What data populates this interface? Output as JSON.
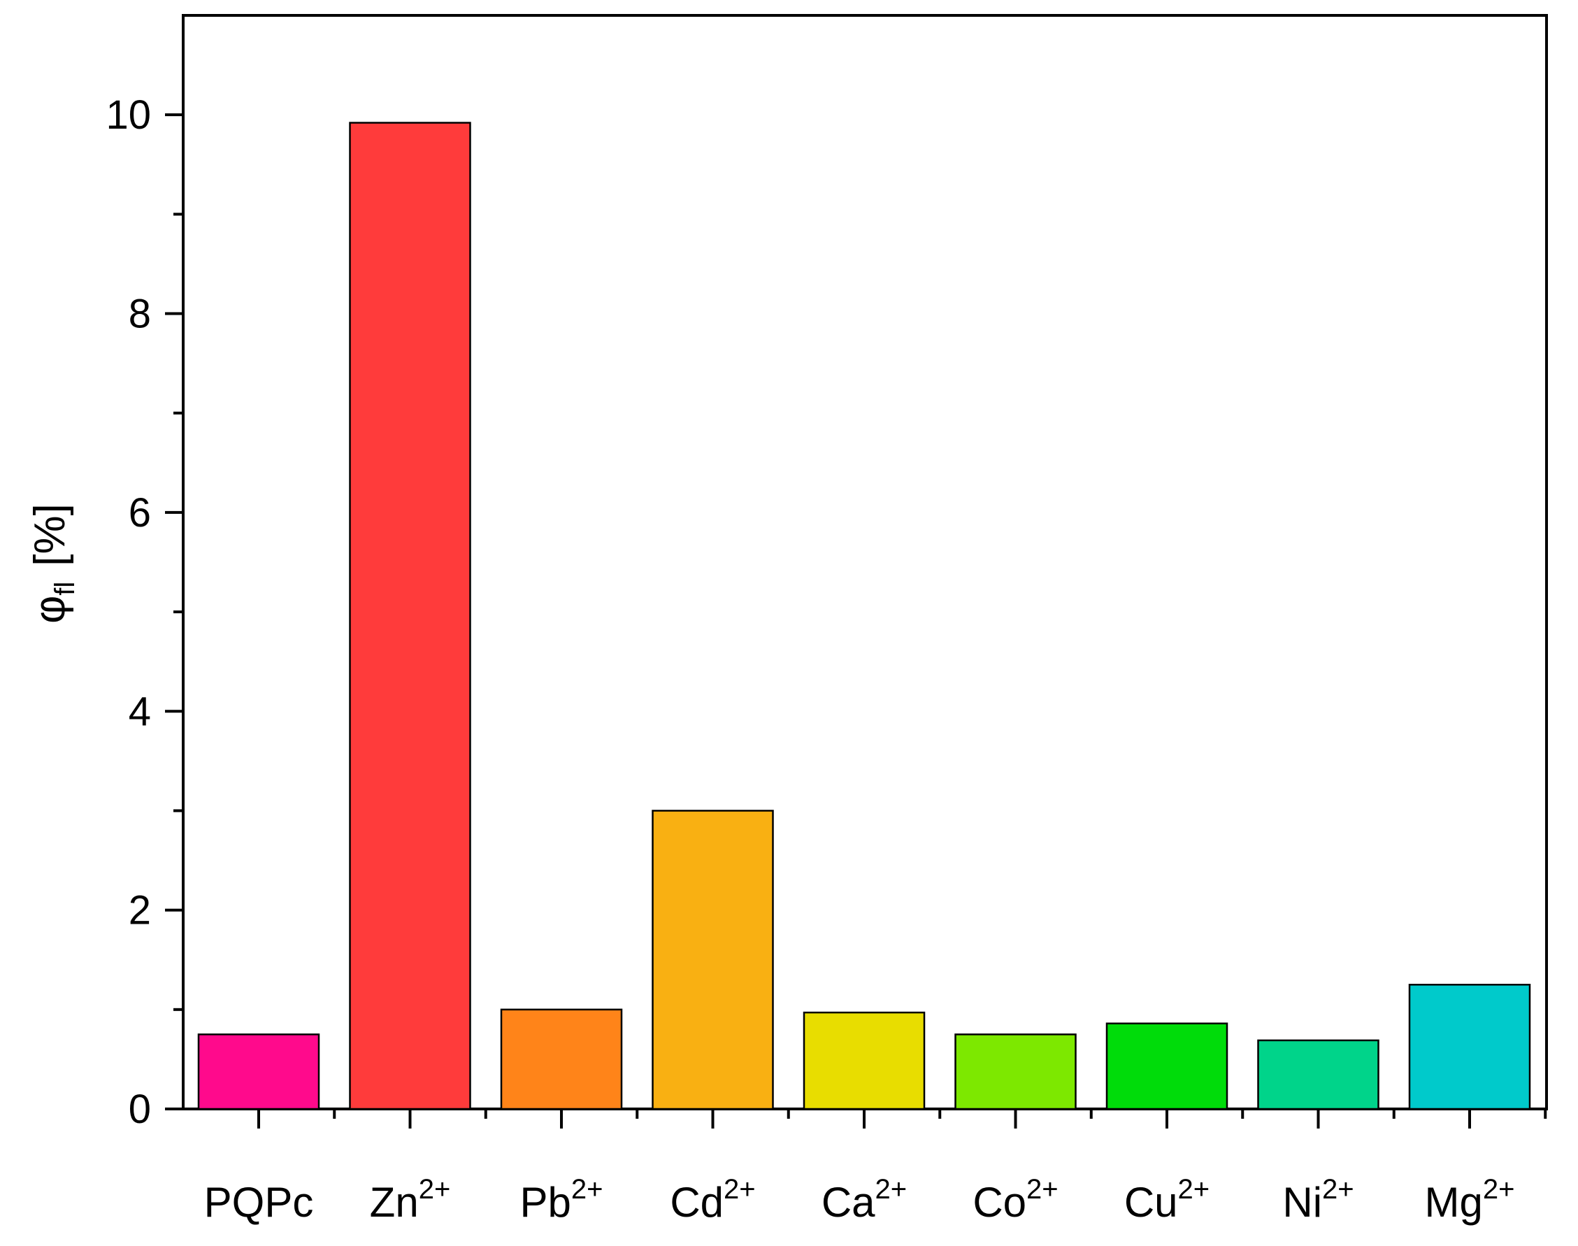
{
  "chart_data": {
    "type": "bar",
    "title": "",
    "xlabel": "",
    "ylabel": {
      "symbol": "φ",
      "subscript": "fl",
      "unit": "[%]"
    },
    "ylim": [
      0,
      11
    ],
    "yticks": [
      0,
      2,
      4,
      6,
      8,
      10
    ],
    "grid": false,
    "legend": "none",
    "categories": [
      {
        "base": "PQPc",
        "sup": ""
      },
      {
        "base": "Zn",
        "sup": "2+"
      },
      {
        "base": "Pb",
        "sup": "2+"
      },
      {
        "base": "Cd",
        "sup": "2+"
      },
      {
        "base": "Ca",
        "sup": "2+"
      },
      {
        "base": "Co",
        "sup": "2+"
      },
      {
        "base": "Cu",
        "sup": "2+"
      },
      {
        "base": "Ni",
        "sup": "2+"
      },
      {
        "base": "Mg",
        "sup": "2+"
      }
    ],
    "values": [
      0.75,
      9.92,
      1.0,
      3.0,
      0.97,
      0.75,
      0.86,
      0.69,
      1.25
    ],
    "colors": [
      "#ff0a8c",
      "#ff3b3b",
      "#ff8419",
      "#f9b012",
      "#e8dd00",
      "#7de800",
      "#00dc0a",
      "#00d48a",
      "#00cacb"
    ]
  }
}
